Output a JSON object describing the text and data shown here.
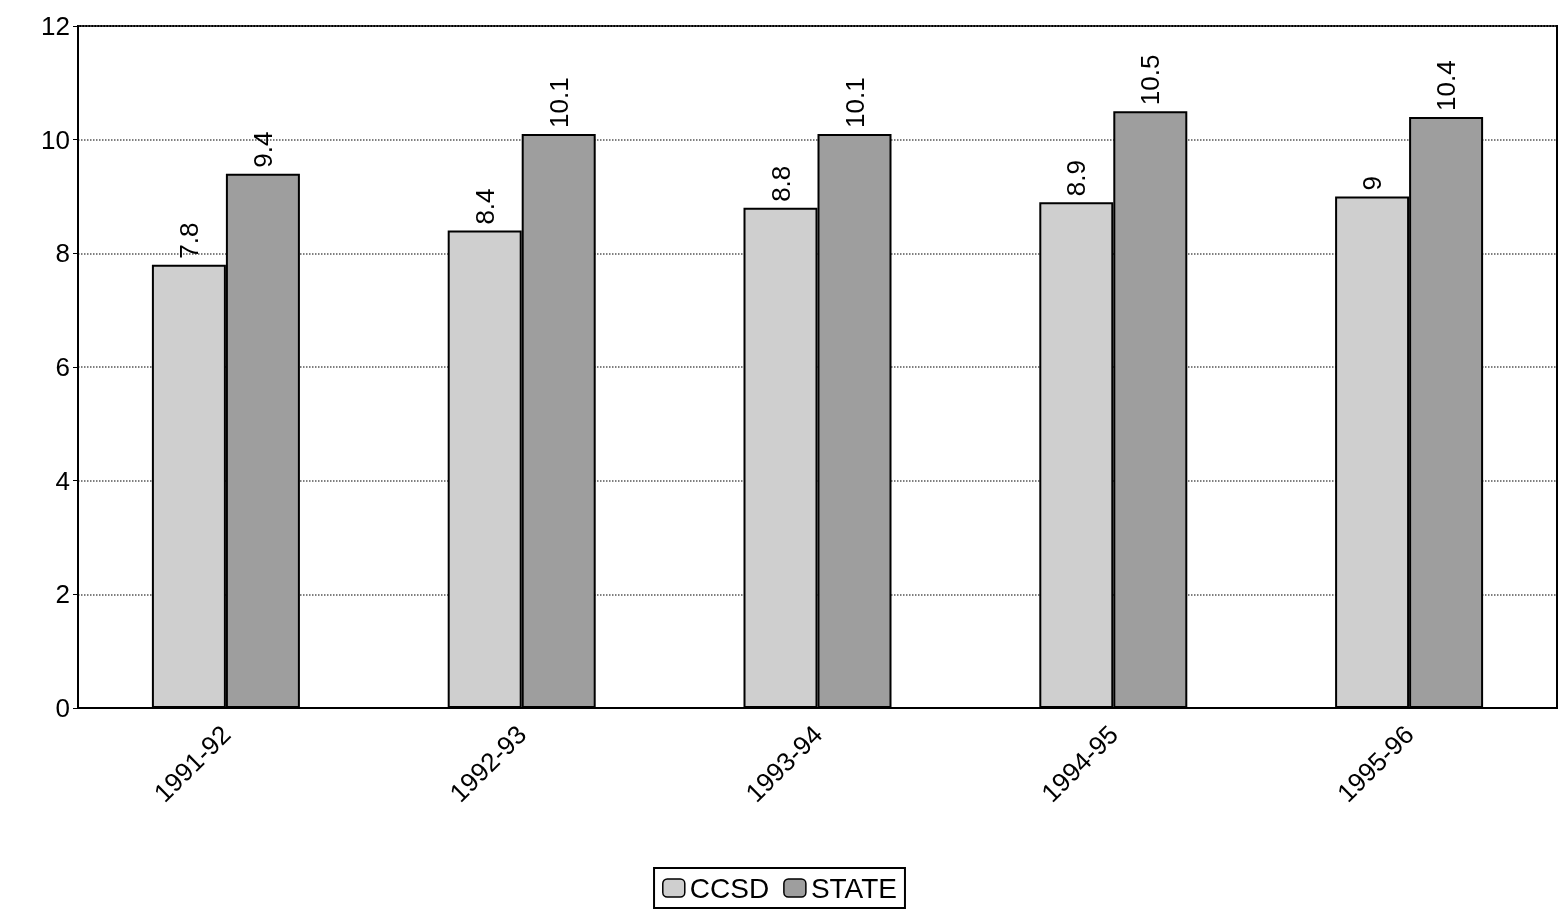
{
  "chart_data": {
    "type": "bar",
    "categories": [
      "1991-92",
      "1992-93",
      "1993-94",
      "1994-95",
      "1995-96"
    ],
    "series": [
      {
        "name": "CCSD",
        "color": "#cfcfcf",
        "values": [
          7.8,
          8.4,
          8.8,
          8.9,
          9
        ]
      },
      {
        "name": "STATE",
        "color": "#9e9e9e",
        "values": [
          9.4,
          10.1,
          10.1,
          10.5,
          10.4
        ]
      }
    ],
    "ylim": [
      0,
      12
    ],
    "yticks": [
      0,
      2,
      4,
      6,
      8,
      10,
      12
    ],
    "grid": "y",
    "legend": "bottom",
    "data_labels": true
  }
}
